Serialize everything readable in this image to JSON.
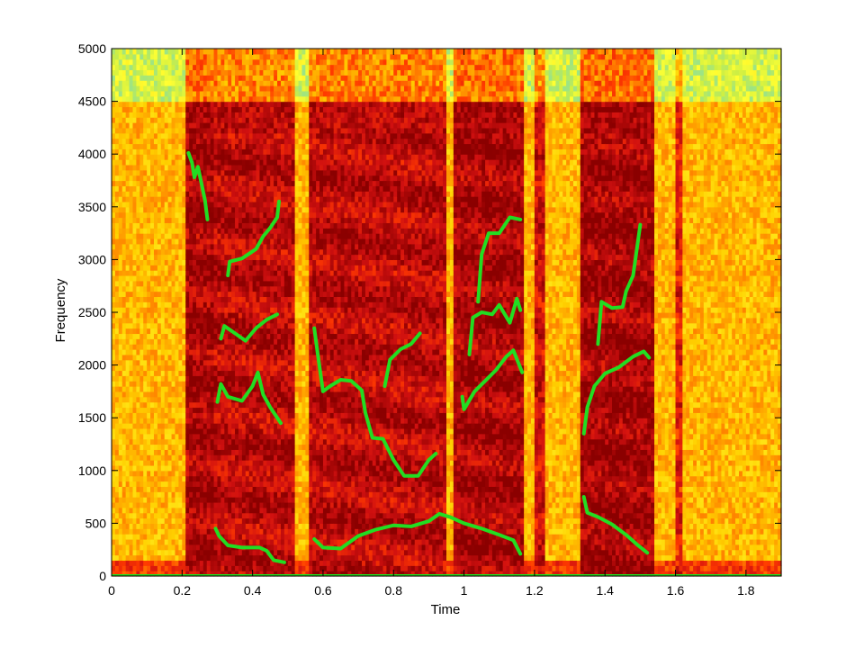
{
  "chart_data": {
    "type": "heatmap",
    "title": "",
    "xlabel": "Time",
    "ylabel": "Frequency",
    "xlim": [
      0,
      1.9
    ],
    "ylim": [
      0,
      5000
    ],
    "x_ticks": [
      0,
      0.2,
      0.4,
      0.6,
      0.8,
      1,
      1.2,
      1.4,
      1.6,
      1.8
    ],
    "x_tick_labels": [
      "0",
      "0.2",
      "0.4",
      "0.6",
      "0.8",
      "1",
      "1.2",
      "1.4",
      "1.6",
      "1.8"
    ],
    "y_ticks": [
      0,
      500,
      1000,
      1500,
      2000,
      2500,
      3000,
      3500,
      4000,
      4500,
      5000
    ],
    "y_tick_labels": [
      "0",
      "500",
      "1000",
      "1500",
      "2000",
      "2500",
      "3000",
      "3500",
      "4000",
      "4500",
      "5000"
    ],
    "grid": false,
    "colormap": [
      "#8B0000",
      "#D01010",
      "#FF3A00",
      "#FF8C00",
      "#FFD000",
      "#FFFF33",
      "#CCEE44",
      "#88E0A0"
    ],
    "overlay_color": "#22DD22",
    "spectrogram": {
      "high_band_start_freq": 4500,
      "voiced_segments": [
        {
          "start": 0.21,
          "end": 0.29,
          "level": 0.8
        },
        {
          "start": 0.29,
          "end": 0.52,
          "level": 0.72
        },
        {
          "start": 0.56,
          "end": 0.95,
          "level": 0.72
        },
        {
          "start": 0.97,
          "end": 1.17,
          "level": 0.78
        },
        {
          "start": 1.2,
          "end": 1.23,
          "level": 0.65
        },
        {
          "start": 1.33,
          "end": 1.54,
          "level": 0.8
        },
        {
          "start": 1.6,
          "end": 1.62,
          "level": 0.55
        }
      ]
    },
    "tracks": [
      {
        "points": [
          [
            0.218,
            4010
          ],
          [
            0.228,
            3920
          ],
          [
            0.235,
            3780
          ],
          [
            0.245,
            3880
          ],
          [
            0.255,
            3720
          ],
          [
            0.265,
            3560
          ],
          [
            0.272,
            3380
          ]
        ]
      },
      {
        "points": [
          [
            0.33,
            2850
          ],
          [
            0.335,
            2980
          ],
          [
            0.37,
            3010
          ],
          [
            0.41,
            3100
          ],
          [
            0.43,
            3220
          ],
          [
            0.45,
            3300
          ],
          [
            0.47,
            3400
          ],
          [
            0.475,
            3550
          ]
        ]
      },
      {
        "points": [
          [
            0.31,
            2250
          ],
          [
            0.32,
            2370
          ],
          [
            0.35,
            2300
          ],
          [
            0.38,
            2230
          ],
          [
            0.41,
            2350
          ],
          [
            0.44,
            2430
          ],
          [
            0.47,
            2480
          ]
        ]
      },
      {
        "points": [
          [
            0.3,
            1650
          ],
          [
            0.31,
            1820
          ],
          [
            0.33,
            1700
          ],
          [
            0.37,
            1660
          ],
          [
            0.4,
            1800
          ],
          [
            0.415,
            1930
          ],
          [
            0.43,
            1720
          ],
          [
            0.45,
            1600
          ],
          [
            0.48,
            1450
          ]
        ]
      },
      {
        "points": [
          [
            0.295,
            450
          ],
          [
            0.305,
            380
          ],
          [
            0.33,
            290
          ],
          [
            0.37,
            270
          ],
          [
            0.42,
            270
          ],
          [
            0.44,
            240
          ],
          [
            0.46,
            150
          ],
          [
            0.49,
            130
          ]
        ]
      },
      {
        "points": [
          [
            0.575,
            2350
          ],
          [
            0.585,
            2100
          ],
          [
            0.6,
            1750
          ],
          [
            0.62,
            1800
          ],
          [
            0.65,
            1860
          ],
          [
            0.68,
            1850
          ],
          [
            0.71,
            1760
          ],
          [
            0.72,
            1550
          ],
          [
            0.74,
            1310
          ],
          [
            0.77,
            1300
          ],
          [
            0.8,
            1100
          ],
          [
            0.83,
            950
          ],
          [
            0.87,
            950
          ],
          [
            0.9,
            1100
          ],
          [
            0.92,
            1160
          ]
        ]
      },
      {
        "points": [
          [
            0.775,
            1800
          ],
          [
            0.79,
            2050
          ],
          [
            0.82,
            2150
          ],
          [
            0.85,
            2200
          ],
          [
            0.875,
            2300
          ]
        ]
      },
      {
        "points": [
          [
            0.575,
            350
          ],
          [
            0.6,
            270
          ],
          [
            0.65,
            260
          ],
          [
            0.7,
            380
          ],
          [
            0.75,
            440
          ],
          [
            0.8,
            480
          ],
          [
            0.85,
            470
          ],
          [
            0.9,
            520
          ],
          [
            0.93,
            590
          ],
          [
            0.96,
            560
          ],
          [
            1.0,
            500
          ],
          [
            1.05,
            450
          ],
          [
            1.1,
            390
          ],
          [
            1.14,
            340
          ],
          [
            1.16,
            210
          ]
        ]
      },
      {
        "points": [
          [
            1.015,
            2100
          ],
          [
            1.025,
            2450
          ],
          [
            1.05,
            2500
          ],
          [
            1.08,
            2480
          ],
          [
            1.1,
            2570
          ],
          [
            1.13,
            2400
          ],
          [
            1.15,
            2630
          ],
          [
            1.16,
            2520
          ]
        ]
      },
      {
        "points": [
          [
            1.04,
            2600
          ],
          [
            1.05,
            3050
          ],
          [
            1.07,
            3250
          ],
          [
            1.1,
            3250
          ],
          [
            1.13,
            3400
          ],
          [
            1.16,
            3380
          ]
        ]
      },
      {
        "points": [
          [
            0.995,
            1700
          ],
          [
            1.0,
            1580
          ],
          [
            1.03,
            1750
          ],
          [
            1.06,
            1850
          ],
          [
            1.09,
            1950
          ],
          [
            1.12,
            2080
          ],
          [
            1.14,
            2140
          ],
          [
            1.165,
            1930
          ]
        ]
      },
      {
        "points": [
          [
            1.38,
            2200
          ],
          [
            1.39,
            2600
          ],
          [
            1.42,
            2540
          ],
          [
            1.45,
            2550
          ],
          [
            1.46,
            2700
          ],
          [
            1.48,
            2850
          ],
          [
            1.5,
            3330
          ]
        ]
      },
      {
        "points": [
          [
            1.34,
            1350
          ],
          [
            1.35,
            1600
          ],
          [
            1.37,
            1800
          ],
          [
            1.4,
            1920
          ],
          [
            1.44,
            1980
          ],
          [
            1.48,
            2080
          ],
          [
            1.51,
            2130
          ],
          [
            1.525,
            2070
          ]
        ]
      },
      {
        "points": [
          [
            1.34,
            750
          ],
          [
            1.35,
            600
          ],
          [
            1.38,
            560
          ],
          [
            1.42,
            490
          ],
          [
            1.46,
            390
          ],
          [
            1.49,
            300
          ],
          [
            1.52,
            220
          ]
        ]
      }
    ]
  }
}
